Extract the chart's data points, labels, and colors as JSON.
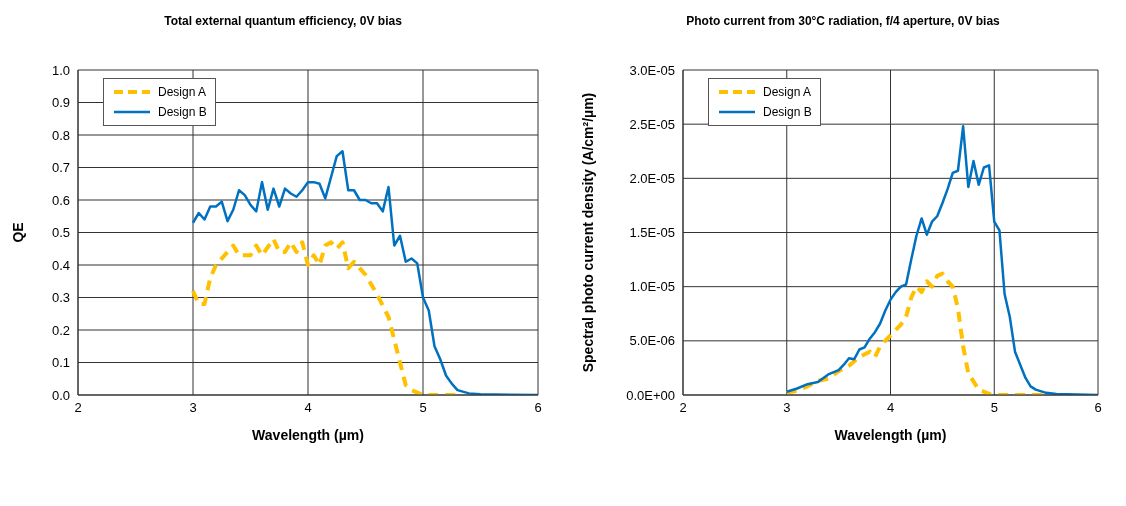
{
  "chart_data": [
    {
      "type": "line",
      "title": "Total external quantum efficiency, 0V bias",
      "xlabel": "Wavelength (µm)",
      "ylabel": "QE",
      "xlim": [
        2,
        6
      ],
      "xticks": [
        2,
        3,
        4,
        5,
        6
      ],
      "ylim": [
        0,
        1
      ],
      "yticks": [
        {
          "value": 0,
          "label": "0.0"
        },
        0.1,
        0.2,
        0.3,
        0.4,
        0.5,
        0.6,
        0.7,
        0.8,
        0.9,
        {
          "value": 1,
          "label": "1.0"
        }
      ],
      "grid": true,
      "legend": "top left",
      "series": [
        {
          "name": "Design A",
          "color": "#ffc000",
          "line_style": "dashed",
          "x": [
            3.0,
            3.05,
            3.1,
            3.15,
            3.2,
            3.3,
            3.35,
            3.4,
            3.5,
            3.55,
            3.6,
            3.7,
            3.75,
            3.8,
            3.85,
            3.9,
            3.95,
            4.0,
            4.05,
            4.1,
            4.15,
            4.2,
            4.25,
            4.3,
            4.35,
            4.4,
            4.5,
            4.6,
            4.7,
            4.8,
            4.85,
            4.9,
            5.0,
            5.3
          ],
          "values": [
            0.32,
            0.28,
            0.28,
            0.36,
            0.4,
            0.44,
            0.46,
            0.43,
            0.43,
            0.46,
            0.43,
            0.48,
            0.44,
            0.44,
            0.47,
            0.44,
            0.47,
            0.4,
            0.43,
            0.4,
            0.46,
            0.47,
            0.45,
            0.47,
            0.39,
            0.41,
            0.37,
            0.31,
            0.24,
            0.1,
            0.03,
            0.015,
            0,
            0
          ]
        },
        {
          "name": "Design B",
          "color": "#0070c0",
          "line_style": "solid",
          "x": [
            3.0,
            3.05,
            3.1,
            3.15,
            3.2,
            3.25,
            3.3,
            3.35,
            3.4,
            3.45,
            3.5,
            3.55,
            3.6,
            3.65,
            3.7,
            3.75,
            3.8,
            3.85,
            3.9,
            3.95,
            4.0,
            4.05,
            4.1,
            4.15,
            4.2,
            4.25,
            4.3,
            4.35,
            4.4,
            4.45,
            4.5,
            4.55,
            4.6,
            4.65,
            4.7,
            4.75,
            4.8,
            4.85,
            4.9,
            4.95,
            5.0,
            5.05,
            5.1,
            5.15,
            5.2,
            5.25,
            5.3,
            5.4,
            5.5,
            6.0
          ],
          "values": [
            0.53,
            0.56,
            0.54,
            0.58,
            0.58,
            0.595,
            0.535,
            0.57,
            0.63,
            0.615,
            0.585,
            0.565,
            0.655,
            0.57,
            0.635,
            0.58,
            0.635,
            0.62,
            0.61,
            0.63,
            0.655,
            0.655,
            0.65,
            0.605,
            0.67,
            0.735,
            0.75,
            0.63,
            0.63,
            0.6,
            0.6,
            0.59,
            0.59,
            0.565,
            0.64,
            0.46,
            0.49,
            0.41,
            0.42,
            0.405,
            0.3,
            0.26,
            0.15,
            0.11,
            0.06,
            0.035,
            0.015,
            0.005,
            0.002,
            0
          ]
        }
      ]
    },
    {
      "type": "line",
      "title": "Photo current from 30°C radiation, f/4 aperture, 0V bias",
      "xlabel": "Wavelength (µm)",
      "ylabel": "Spectral photo current density (A/cm²/µm)",
      "xlim": [
        2,
        6
      ],
      "xticks": [
        2,
        3,
        4,
        5,
        6
      ],
      "ylim": [
        0,
        3e-05
      ],
      "yticks": [
        {
          "value": 0,
          "label": "0.0E+00"
        },
        {
          "value": 5e-06,
          "label": "5.0E-06"
        },
        {
          "value": 1e-05,
          "label": "1.0E-05"
        },
        {
          "value": 1.5e-05,
          "label": "1.5E-05"
        },
        {
          "value": 2e-05,
          "label": "2.0E-05"
        },
        {
          "value": 2.5e-05,
          "label": "2.5E-05"
        },
        {
          "value": 3e-05,
          "label": "3.0E-05"
        }
      ],
      "grid": true,
      "legend": "top left",
      "series": [
        {
          "name": "Design A",
          "color": "#ffc000",
          "line_style": "dashed",
          "x": [
            3.0,
            3.1,
            3.2,
            3.3,
            3.4,
            3.5,
            3.6,
            3.7,
            3.8,
            3.85,
            3.9,
            4.0,
            4.1,
            4.15,
            4.2,
            4.25,
            4.3,
            4.35,
            4.4,
            4.45,
            4.5,
            4.55,
            4.6,
            4.65,
            4.7,
            4.75,
            4.85,
            4.95,
            5.0,
            5.5
          ],
          "values": [
            2e-07,
            4e-07,
            8e-07,
            1.3e-06,
            1.5e-06,
            2.2e-06,
            2.7e-06,
            3.5e-06,
            4e-06,
            3.5e-06,
            4.5e-06,
            5.5e-06,
            6.5e-06,
            7.2e-06,
            9e-06,
            1e-05,
            9.5e-06,
            1.05e-05,
            1e-05,
            1.1e-05,
            1.12e-05,
            1.05e-05,
            1e-05,
            8e-06,
            4.5e-06,
            2e-06,
            5e-07,
            1e-07,
            0,
            0
          ]
        },
        {
          "name": "Design B",
          "color": "#0070c0",
          "line_style": "solid",
          "x": [
            3.0,
            3.1,
            3.2,
            3.3,
            3.4,
            3.5,
            3.55,
            3.6,
            3.65,
            3.7,
            3.75,
            3.8,
            3.85,
            3.9,
            3.95,
            4.0,
            4.05,
            4.1,
            4.15,
            4.2,
            4.25,
            4.3,
            4.35,
            4.4,
            4.45,
            4.5,
            4.55,
            4.6,
            4.65,
            4.7,
            4.75,
            4.8,
            4.85,
            4.9,
            4.95,
            5.0,
            5.05,
            5.1,
            5.15,
            5.2,
            5.3,
            5.35,
            5.4,
            5.5,
            5.6,
            6.0
          ],
          "values": [
            3e-07,
            6e-07,
            1e-06,
            1.2e-06,
            1.9e-06,
            2.3e-06,
            2.8e-06,
            3.4e-06,
            3.3e-06,
            4.2e-06,
            4.4e-06,
            5.2e-06,
            5.8e-06,
            6.6e-06,
            7.8e-06,
            8.8e-06,
            9.5e-06,
            1e-05,
            1.02e-05,
            1.25e-05,
            1.47e-05,
            1.63e-05,
            1.48e-05,
            1.6e-05,
            1.65e-05,
            1.77e-05,
            1.9e-05,
            2.05e-05,
            2.07e-05,
            2.48e-05,
            1.92e-05,
            2.16e-05,
            1.94e-05,
            2.1e-05,
            2.12e-05,
            1.6e-05,
            1.52e-05,
            9.3e-06,
            7.2e-06,
            4e-06,
            1.6e-06,
            8e-07,
            5e-07,
            2e-07,
            1e-07,
            0
          ]
        }
      ]
    }
  ]
}
